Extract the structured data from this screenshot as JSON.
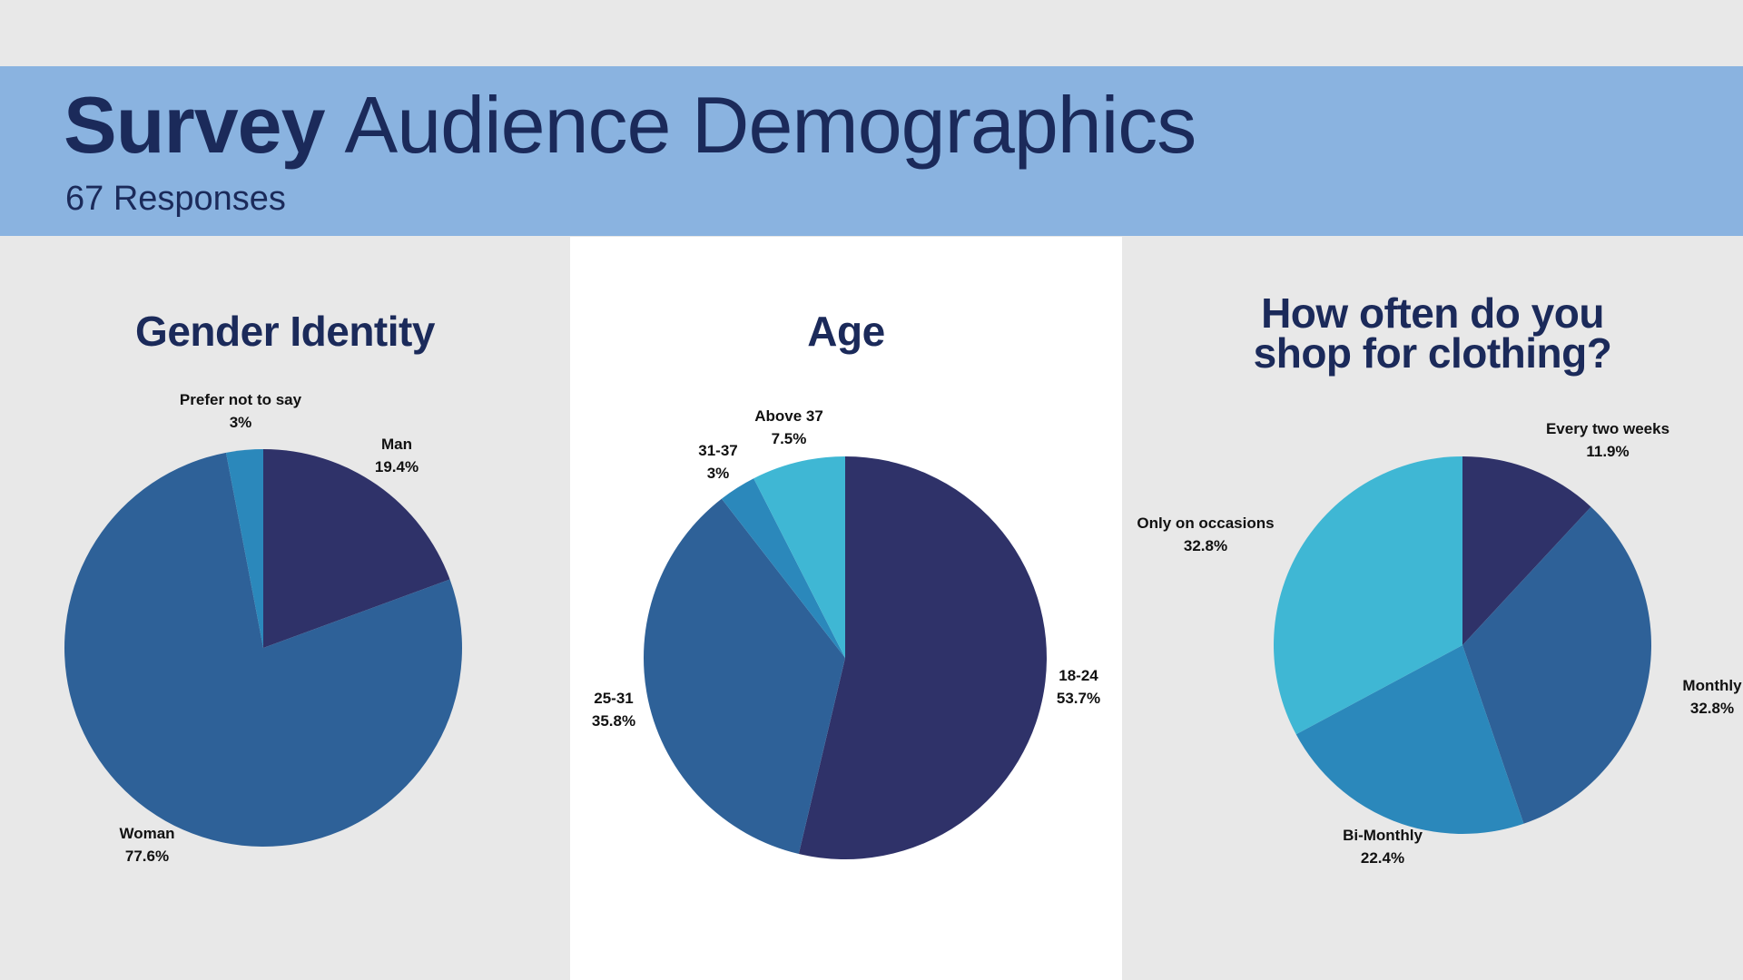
{
  "header": {
    "title_bold": "Survey",
    "title_rest": "Audience Demographics",
    "subtitle": "67 Responses"
  },
  "chart_data": [
    {
      "type": "pie",
      "title": "Gender Identity",
      "slices": [
        {
          "label": "Man",
          "value": 19.4,
          "display": "19.4%",
          "color": "#2f3269"
        },
        {
          "label": "Woman",
          "value": 77.6,
          "display": "77.6%",
          "color": "#2e6198"
        },
        {
          "label": "Prefer not to say",
          "value": 3,
          "display": "3%",
          "color": "#2b88bb"
        }
      ]
    },
    {
      "type": "pie",
      "title": "Age",
      "slices": [
        {
          "label": "18-24",
          "value": 53.7,
          "display": "53.7%",
          "color": "#2f3269"
        },
        {
          "label": "25-31",
          "value": 35.8,
          "display": "35.8%",
          "color": "#2e6198"
        },
        {
          "label": "31-37",
          "value": 3,
          "display": "3%",
          "color": "#2b88bb"
        },
        {
          "label": "Above 37",
          "value": 7.5,
          "display": "7.5%",
          "color": "#3fb7d4"
        }
      ]
    },
    {
      "type": "pie",
      "title": "How often do you shop for clothing?",
      "title_lines": [
        "How often do you",
        "shop for clothing?"
      ],
      "slices": [
        {
          "label": "Every two weeks",
          "value": 11.9,
          "display": "11.9%",
          "color": "#2f3269"
        },
        {
          "label": "Monthly",
          "value": 32.8,
          "display": "32.8%",
          "color": "#2e6198"
        },
        {
          "label": "Bi-Monthly",
          "value": 22.4,
          "display": "22.4%",
          "color": "#2b88bb"
        },
        {
          "label": "Only on occasions",
          "value": 32.8,
          "display": "32.8%",
          "color": "#3fb7d4"
        }
      ]
    }
  ]
}
